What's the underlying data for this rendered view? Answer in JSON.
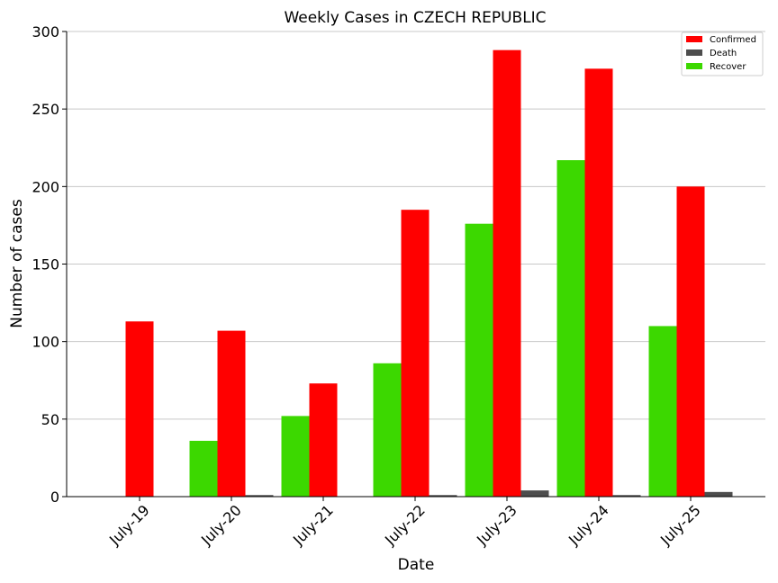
{
  "chart_data": {
    "type": "bar",
    "title": "Weekly Cases in CZECH REPUBLIC",
    "xlabel": "Date",
    "ylabel": "Number of cases",
    "categories": [
      "July-19",
      "July-20",
      "July-21",
      "July-22",
      "July-23",
      "July-24",
      "July-25"
    ],
    "series": [
      {
        "name": "Recover",
        "color": "#3cd800",
        "values": [
          0,
          36,
          52,
          86,
          176,
          217,
          110
        ]
      },
      {
        "name": "Confirmed",
        "color": "#ff0000",
        "values": [
          113,
          107,
          73,
          185,
          288,
          276,
          200
        ]
      },
      {
        "name": "Death",
        "color": "#4d4d4d",
        "values": [
          0,
          1,
          0,
          1,
          4,
          1,
          3
        ]
      }
    ],
    "legend_order": [
      "Confirmed",
      "Death",
      "Recover"
    ],
    "ylim": [
      0,
      300
    ],
    "yticks": [
      0,
      50,
      100,
      150,
      200,
      250,
      300
    ],
    "grid": "horizontal",
    "legend_position": "top-right"
  }
}
